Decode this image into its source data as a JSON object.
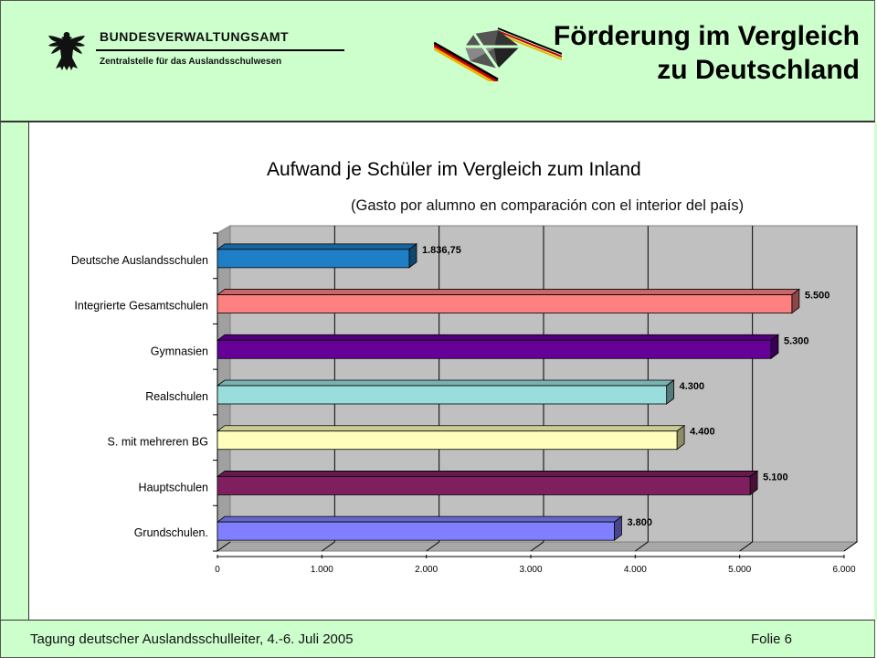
{
  "header": {
    "agency_name": "BUNDESVERWALTUNGSAMT",
    "agency_subtitle": "Zentralstelle für das Auslandsschulwesen",
    "slide_title_line1": "Förderung im Vergleich",
    "slide_title_line2": "zu Deutschland",
    "background": "#ccffcc"
  },
  "chart_data": {
    "type": "bar",
    "orientation": "horizontal",
    "title": "Aufwand je Schüler im Vergleich zum Inland",
    "subtitle": "(Gasto por alumno en comparación con el interior del país)",
    "categories": [
      "Deutsche Auslandsschulen",
      "Integrierte Gesamtschulen",
      "Gymnasien",
      "Realschulen",
      "S. mit mehreren BG",
      "Hauptschulen",
      "Grundschulen."
    ],
    "values": [
      1836.75,
      5500,
      5300,
      4300,
      4400,
      5100,
      3800
    ],
    "data_labels": [
      "1.836,75",
      "5.500",
      "5.300",
      "4.300",
      "4.400",
      "5.100",
      "3.800"
    ],
    "colors": [
      "#1f7fc6",
      "#ff8080",
      "#660099",
      "#99dddd",
      "#ffffbb",
      "#801f5f",
      "#8080ff"
    ],
    "xlim": [
      0,
      6000
    ],
    "x_ticks": [
      "0",
      "1.000",
      "2.000",
      "3.000",
      "4.000",
      "5.000",
      "6.000"
    ],
    "grid": true,
    "plot_background": "#c0c0c0",
    "style": "3d"
  },
  "footer": {
    "event": "Tagung deutscher Auslandsschulleiter, 4.-6. Juli 2005",
    "slide_number": "Folie 6"
  }
}
